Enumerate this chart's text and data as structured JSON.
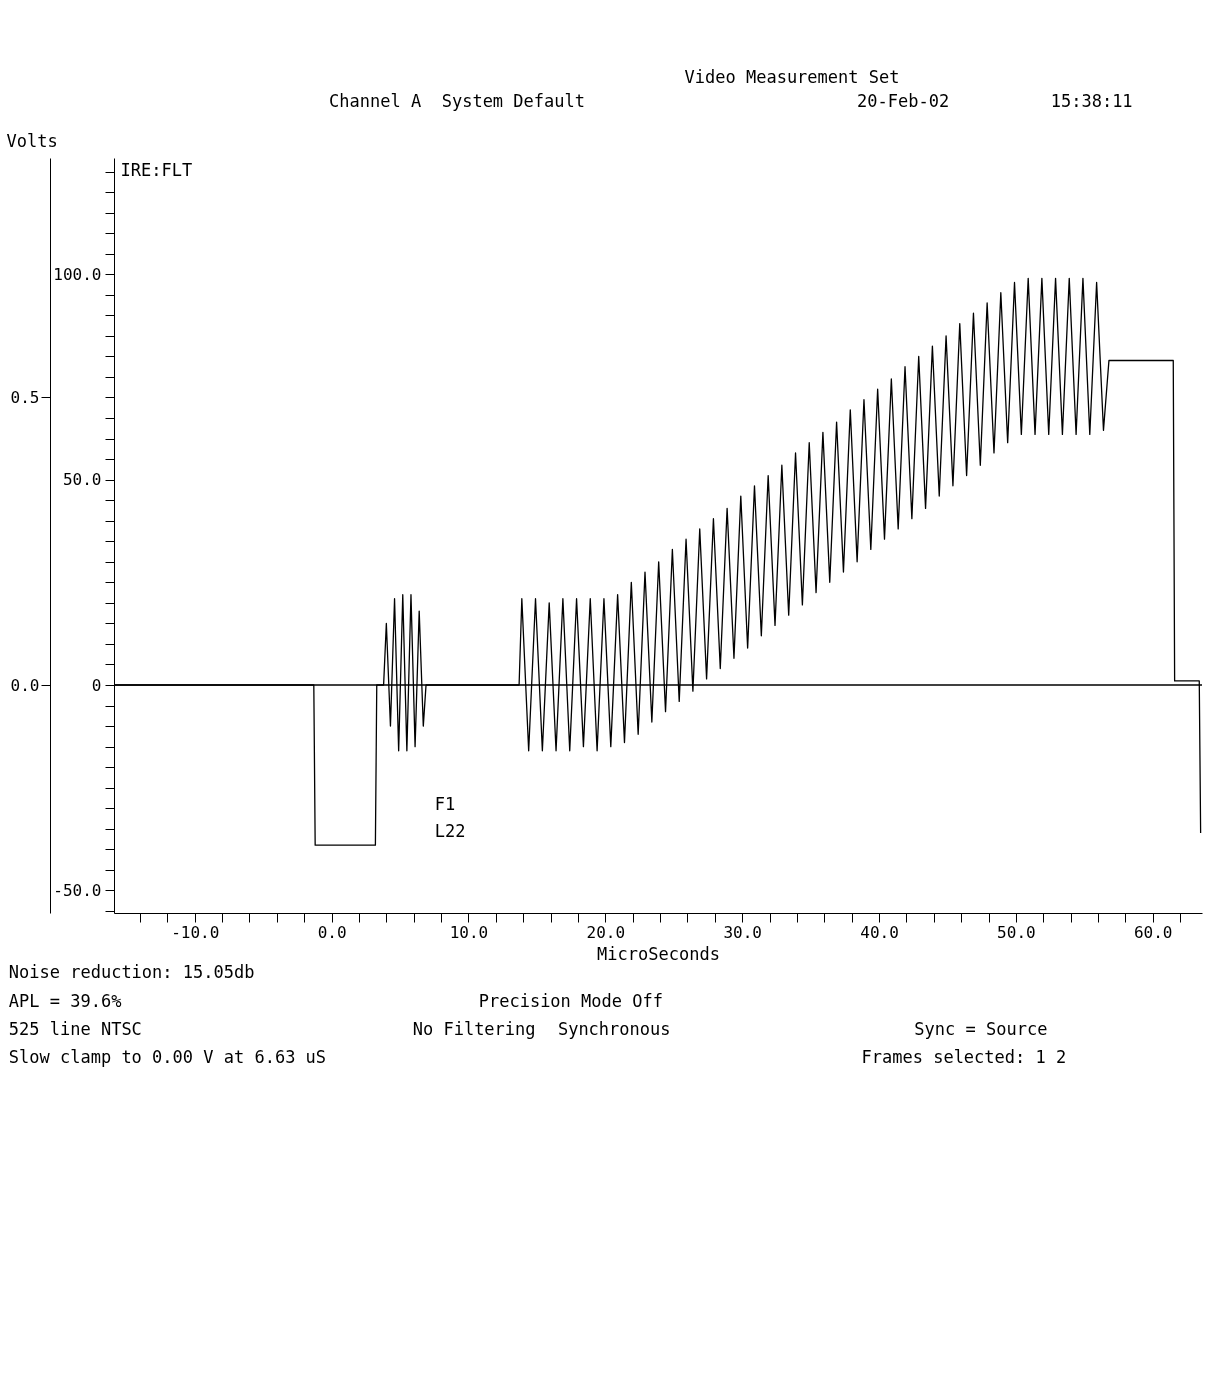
{
  "chart_data": {
    "type": "line",
    "title": "Video Measurement Set",
    "xlabel": "MicroSeconds",
    "ylabel": "IRE:FLT",
    "y2label": "Volts",
    "annotations": [
      "Channel A  System Default",
      "20-Feb-02",
      "15:38:11",
      "F1",
      "L22",
      "Noise reduction: 15.05db",
      "APL = 39.6%",
      "525 line NTSC",
      "No Filtering",
      "Slow clamp to 0.00 V at 6.63 uS",
      "Precision Mode Off",
      "Synchronous",
      "Sync = Source",
      "Frames selected: 1 2"
    ],
    "xlim": [
      -15.9,
      63.6
    ],
    "ylim": [
      -55.5,
      128.3
    ],
    "y2lim": [
      -0.396,
      0.916
    ],
    "xticks": [
      {
        "value": -14,
        "label": null
      },
      {
        "value": -12,
        "label": null
      },
      {
        "value": -10,
        "label": "-10.0"
      },
      {
        "value": -8,
        "label": null
      },
      {
        "value": -6,
        "label": null
      },
      {
        "value": -4,
        "label": null
      },
      {
        "value": -2,
        "label": null
      },
      {
        "value": 0,
        "label": "0.0"
      },
      {
        "value": 2,
        "label": null
      },
      {
        "value": 4,
        "label": null
      },
      {
        "value": 6,
        "label": null
      },
      {
        "value": 8,
        "label": null
      },
      {
        "value": 10,
        "label": "10.0"
      },
      {
        "value": 12,
        "label": null
      },
      {
        "value": 14,
        "label": null
      },
      {
        "value": 16,
        "label": null
      },
      {
        "value": 18,
        "label": null
      },
      {
        "value": 20,
        "label": "20.0"
      },
      {
        "value": 22,
        "label": null
      },
      {
        "value": 24,
        "label": null
      },
      {
        "value": 26,
        "label": null
      },
      {
        "value": 28,
        "label": null
      },
      {
        "value": 30,
        "label": "30.0"
      },
      {
        "value": 32,
        "label": null
      },
      {
        "value": 34,
        "label": null
      },
      {
        "value": 36,
        "label": null
      },
      {
        "value": 38,
        "label": null
      },
      {
        "value": 40,
        "label": "40.0"
      },
      {
        "value": 42,
        "label": null
      },
      {
        "value": 44,
        "label": null
      },
      {
        "value": 46,
        "label": null
      },
      {
        "value": 48,
        "label": null
      },
      {
        "value": 50,
        "label": "50.0"
      },
      {
        "value": 52,
        "label": null
      },
      {
        "value": 54,
        "label": null
      },
      {
        "value": 56,
        "label": null
      },
      {
        "value": 58,
        "label": null
      },
      {
        "value": 60,
        "label": "60.0"
      },
      {
        "value": 62,
        "label": null
      }
    ],
    "yticks": [
      {
        "value": -55,
        "label": null
      },
      {
        "value": -50,
        "label": "-50.0"
      },
      {
        "value": -45,
        "label": null
      },
      {
        "value": -40,
        "label": null
      },
      {
        "value": -35,
        "label": null
      },
      {
        "value": -30,
        "label": null
      },
      {
        "value": -25,
        "label": null
      },
      {
        "value": -20,
        "label": null
      },
      {
        "value": -15,
        "label": null
      },
      {
        "value": -10,
        "label": null
      },
      {
        "value": -5,
        "label": null
      },
      0,
      {
        "value": 5,
        "label": null
      },
      {
        "value": 10,
        "label": null
      },
      {
        "value": 15,
        "label": null
      },
      {
        "value": 20,
        "label": null
      },
      {
        "value": 25,
        "label": null
      },
      {
        "value": 30,
        "label": null
      },
      {
        "value": 35,
        "label": null
      },
      {
        "value": 40,
        "label": null
      },
      {
        "value": 45,
        "label": null
      },
      {
        "value": 50,
        "label": "50.0"
      },
      {
        "value": 55,
        "label": null
      },
      {
        "value": 60,
        "label": null
      },
      {
        "value": 65,
        "label": null
      },
      {
        "value": 70,
        "label": null
      },
      {
        "value": 75,
        "label": null
      },
      {
        "value": 80,
        "label": null
      },
      {
        "value": 85,
        "label": null
      },
      {
        "value": 90,
        "label": null
      },
      {
        "value": 95,
        "label": null
      },
      {
        "value": 100,
        "label": "100.0"
      },
      {
        "value": 105,
        "label": null
      },
      {
        "value": 110,
        "label": null
      },
      {
        "value": 115,
        "label": null
      },
      {
        "value": 120,
        "label": null
      },
      {
        "value": 125,
        "label": null
      }
    ],
    "y2ticks": [
      {
        "value": 0,
        "label": "0.0"
      },
      0.5
    ],
    "ref_lines": [
      {
        "axis": "y",
        "value": 0,
        "color": "#000000"
      }
    ],
    "series": [
      {
        "color": "#000000",
        "x": [
          -15.9,
          -1.3,
          -1.2,
          3.2,
          3.3,
          3.8,
          4.0,
          4.3,
          4.6,
          4.9,
          5.2,
          5.5,
          5.8,
          6.1,
          6.4,
          6.7,
          6.9,
          13.7,
          13.9,
          14.4,
          14.9,
          15.4,
          15.9,
          16.4,
          16.9,
          17.4,
          17.9,
          18.4,
          18.9,
          19.4,
          19.9,
          20.4,
          20.9,
          21.4,
          21.9,
          22.4,
          22.9,
          23.4,
          23.9,
          24.4,
          24.9,
          25.4,
          25.9,
          26.4,
          26.9,
          27.4,
          27.9,
          28.4,
          28.9,
          29.4,
          29.9,
          30.4,
          30.9,
          31.4,
          31.9,
          32.4,
          32.9,
          33.4,
          33.9,
          34.4,
          34.9,
          35.4,
          35.9,
          36.4,
          36.9,
          37.4,
          37.9,
          38.4,
          38.9,
          39.4,
          39.9,
          40.4,
          40.9,
          41.4,
          41.9,
          42.4,
          42.9,
          43.4,
          43.9,
          44.4,
          44.9,
          45.4,
          45.9,
          46.4,
          46.9,
          47.4,
          47.9,
          48.4,
          48.9,
          49.4,
          49.9,
          50.4,
          50.9,
          51.4,
          51.9,
          52.4,
          52.9,
          53.4,
          53.9,
          54.4,
          54.9,
          55.4,
          55.9,
          56.4,
          56.8,
          61.5,
          61.6,
          63.4,
          63.5
        ],
        "values": [
          0,
          0,
          -39,
          -39,
          0,
          0,
          15,
          -10,
          21,
          -16,
          22,
          -16,
          22,
          -15,
          18,
          -10,
          0,
          0,
          21,
          -16,
          21,
          -16,
          20,
          -16,
          21,
          -16,
          21,
          -15,
          21,
          -16,
          21,
          -15,
          22,
          -14,
          25,
          -12,
          27.5,
          -9,
          30,
          -6.5,
          33,
          -4,
          35.5,
          -1.5,
          38,
          1.5,
          40.5,
          4,
          43,
          6.5,
          46,
          9,
          48.5,
          12,
          51,
          14.5,
          53.5,
          17,
          56.5,
          19.5,
          59,
          22.5,
          61.5,
          25,
          64,
          27.5,
          67,
          30,
          69.5,
          33,
          72,
          35.5,
          74.5,
          38,
          77.5,
          40.5,
          80,
          43,
          82.5,
          46,
          85,
          48.5,
          88,
          51,
          90.5,
          53.5,
          93,
          56.5,
          95.5,
          59,
          98,
          61,
          99,
          61,
          99,
          61,
          99,
          61,
          99,
          61,
          99,
          61,
          98,
          62,
          79,
          79,
          1,
          1,
          -36
        ]
      }
    ]
  }
}
